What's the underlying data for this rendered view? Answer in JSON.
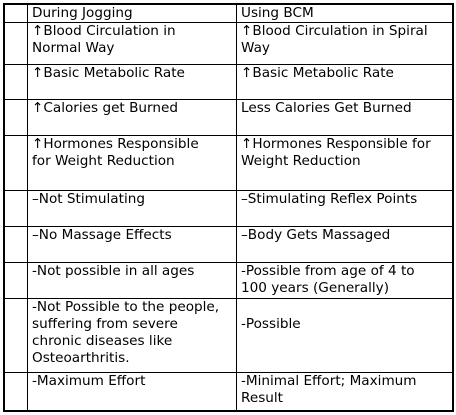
{
  "table": {
    "headers": [
      "During Jogging",
      "Using BCM"
    ],
    "rows": [
      [
        "↑Blood Circulation in\nNormal Way",
        "↑Blood Circulation in Spiral\nWay"
      ],
      [
        "↑Basic Metabolic Rate",
        "↑Basic Metabolic Rate"
      ],
      [
        "↑Calories get Burned",
        "Less Calories Get Burned"
      ],
      [
        "↑Hormones Responsible\nfor Weight Reduction",
        "↑Hormones Responsible for\nWeight Reduction"
      ],
      [
        "–Not Stimulating",
        "–Stimulating Reflex Points"
      ],
      [
        "–No Massage Effects",
        "–Body Gets Massaged"
      ],
      [
        "-Not possible in all ages",
        "-Possible from age of 4 to\n100 years (Generally)"
      ],
      [
        "-Not Possible to the people,\nsuffering from severe\nchronic diseases like\nOsteoarthritis.",
        "\n-Possible"
      ],
      [
        "-Maximum Effort",
        "-Minimal Effort; Maximum\nResult"
      ]
    ]
  }
}
